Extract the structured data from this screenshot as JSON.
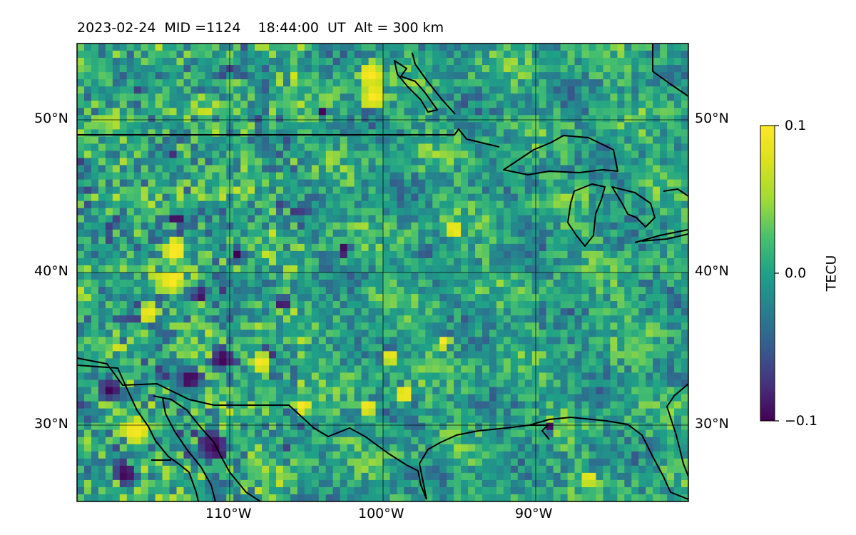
{
  "title": "2023-02-24  MID =1124    18:44:00  UT  Alt = 300 km",
  "chart_data": {
    "type": "heatmap",
    "title": "2023-02-24  MID =1124    18:44:00  UT  Alt = 300 km",
    "lon_range": [
      -120,
      -80
    ],
    "lat_range": [
      25,
      55
    ],
    "grid": true,
    "colormap": "viridis",
    "value_range": [
      -0.1,
      0.1
    ],
    "colorbar": {
      "label": "TECU",
      "ticks": [
        "0.1",
        "0.0",
        "−0.1"
      ],
      "tick_values": [
        0.1,
        0.0,
        -0.1
      ],
      "placement": "right"
    },
    "lon_ticks": [
      {
        "value": -110,
        "label": "110°W"
      },
      {
        "value": -100,
        "label": "100°W"
      },
      {
        "value": -90,
        "label": "90°W"
      }
    ],
    "lat_ticks": [
      {
        "value": 50,
        "label": "50°N"
      },
      {
        "value": 40,
        "label": "40°N"
      },
      {
        "value": 30,
        "label": "30°N"
      }
    ],
    "hotspots": [
      {
        "lon": -100.8,
        "lat": 53.0,
        "value": 0.1,
        "r": 0.9
      },
      {
        "lon": -100.6,
        "lat": 51.5,
        "value": 0.1,
        "r": 0.9
      },
      {
        "lon": -116.2,
        "lat": 29.6,
        "value": 0.1,
        "r": 0.9
      },
      {
        "lon": -117.8,
        "lat": 32.3,
        "value": -0.1,
        "r": 0.8
      },
      {
        "lon": -116.8,
        "lat": 26.8,
        "value": -0.1,
        "r": 0.8
      },
      {
        "lon": -111.0,
        "lat": 28.6,
        "value": -0.1,
        "r": 1.0
      },
      {
        "lon": -112.6,
        "lat": 33.0,
        "value": -0.1,
        "r": 0.8
      },
      {
        "lon": -110.5,
        "lat": 34.3,
        "value": -0.1,
        "r": 0.8
      },
      {
        "lon": -113.6,
        "lat": 41.4,
        "value": 0.1,
        "r": 0.8
      },
      {
        "lon": -113.8,
        "lat": 39.4,
        "value": 0.1,
        "r": 0.8
      },
      {
        "lon": -115.3,
        "lat": 37.3,
        "value": 0.1,
        "r": 0.7
      },
      {
        "lon": -108.0,
        "lat": 34.0,
        "value": 0.1,
        "r": 0.7
      },
      {
        "lon": -98.6,
        "lat": 32.0,
        "value": 0.1,
        "r": 0.7
      },
      {
        "lon": -101.0,
        "lat": 31.2,
        "value": 0.1,
        "r": 0.6
      },
      {
        "lon": -95.3,
        "lat": 42.8,
        "value": 0.1,
        "r": 0.6
      },
      {
        "lon": -109.5,
        "lat": 41.2,
        "value": -0.1,
        "r": 0.5
      },
      {
        "lon": -106.5,
        "lat": 38.0,
        "value": -0.1,
        "r": 0.5
      },
      {
        "lon": -102.5,
        "lat": 41.5,
        "value": -0.1,
        "r": 0.5
      },
      {
        "lon": -104.0,
        "lat": 50.5,
        "value": -0.1,
        "r": 0.4
      },
      {
        "lon": -113.5,
        "lat": 43.5,
        "value": -0.1,
        "r": 0.5
      },
      {
        "lon": -112.0,
        "lat": 38.5,
        "value": -0.1,
        "r": 0.5
      },
      {
        "lon": -99.5,
        "lat": 34.5,
        "value": 0.1,
        "r": 0.5
      },
      {
        "lon": -96.0,
        "lat": 35.5,
        "value": 0.1,
        "r": 0.5
      },
      {
        "lon": -89.0,
        "lat": 29.8,
        "value": -0.1,
        "r": 0.4
      },
      {
        "lon": -86.5,
        "lat": 26.5,
        "value": 0.1,
        "r": 0.5
      },
      {
        "lon": -105.3,
        "lat": 31.2,
        "value": 0.1,
        "r": 0.6
      }
    ]
  }
}
